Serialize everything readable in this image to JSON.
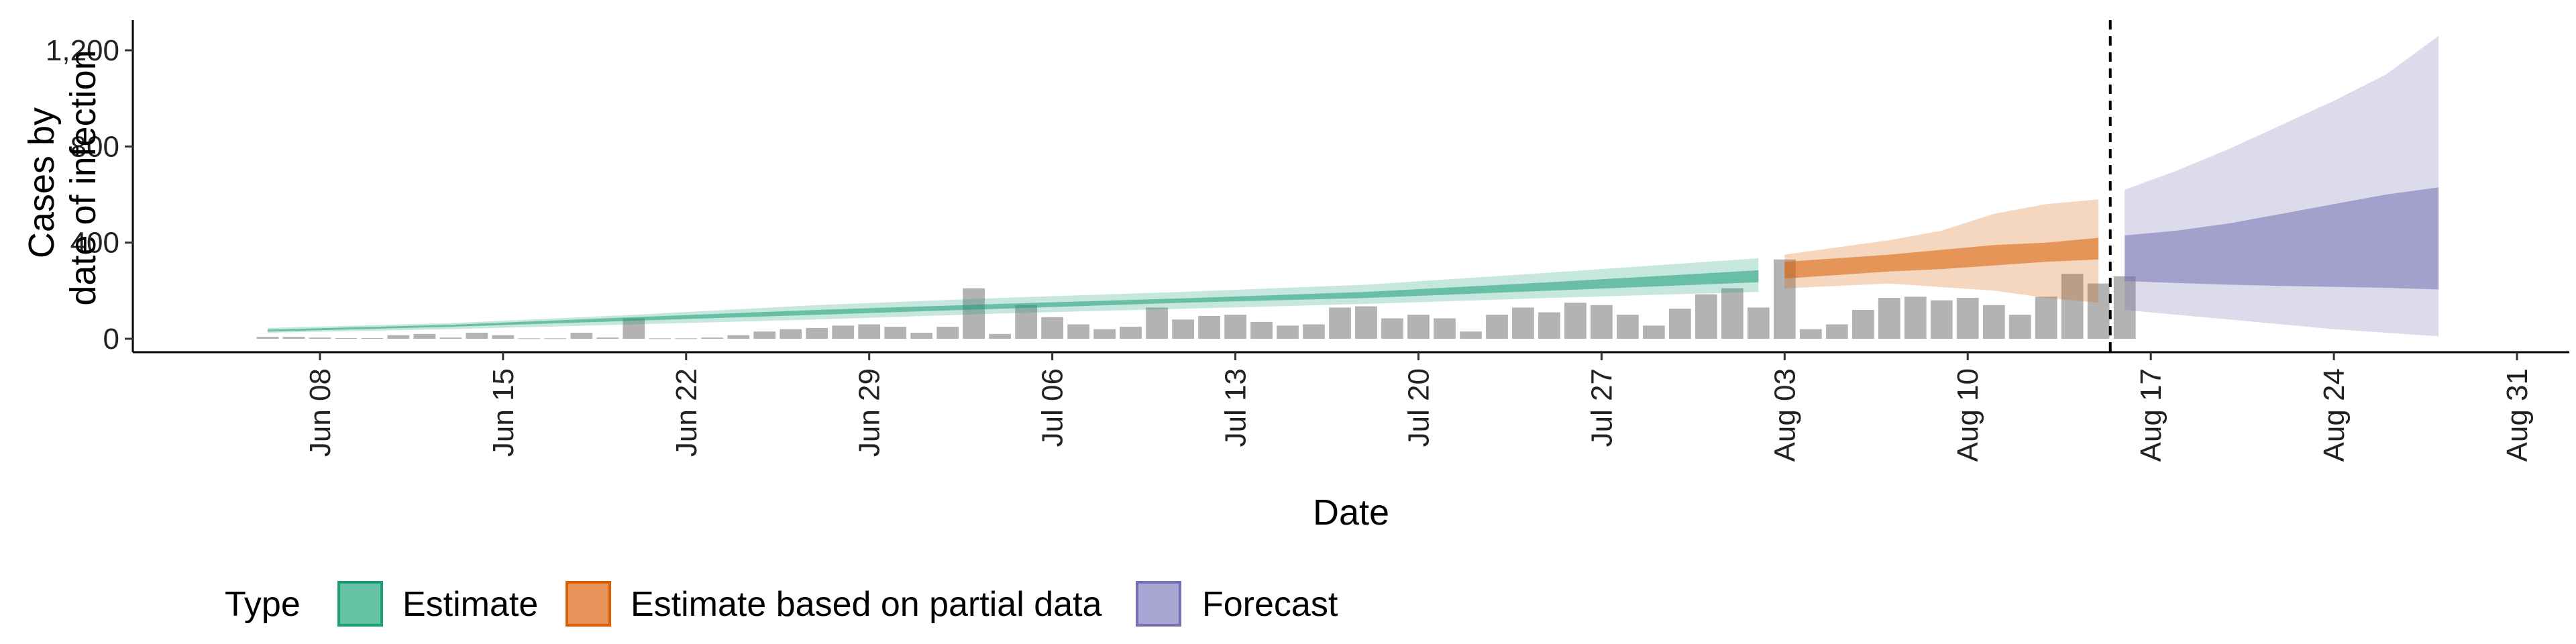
{
  "chart_data": {
    "type": "area",
    "xlabel": "Date",
    "ylabel_lines": [
      "Cases by",
      "date of infection"
    ],
    "ylim": [
      -60,
      1330
    ],
    "y_ticks": [
      0,
      400,
      800,
      1200
    ],
    "y_tick_labels": [
      "0",
      "400",
      "800",
      "1,200"
    ],
    "xlim": [
      "2020-06-01",
      "2020-09-02"
    ],
    "x_ticks": [
      "2020-06-08",
      "2020-06-15",
      "2020-06-22",
      "2020-06-29",
      "2020-07-06",
      "2020-07-13",
      "2020-07-20",
      "2020-07-27",
      "2020-08-03",
      "2020-08-10",
      "2020-08-17",
      "2020-08-24",
      "2020-08-31"
    ],
    "x_tick_labels": [
      "Jun 08",
      "Jun 15",
      "Jun 22",
      "Jun 29",
      "Jul 06",
      "Jul 13",
      "Jul 20",
      "Jul 27",
      "Aug 03",
      "Aug 10",
      "Aug 17",
      "Aug 24",
      "Aug 31"
    ],
    "forecast_date": "2020-08-15",
    "legend": {
      "title": "Type",
      "position": "bottom",
      "items": [
        {
          "label": "Estimate",
          "fill": "#66c2a5",
          "stroke": "#1b9e77"
        },
        {
          "label": "Estimate based on partial data",
          "fill": "#e8925a",
          "stroke": "#d95f02"
        },
        {
          "label": "Forecast",
          "fill": "#a9a5d2",
          "stroke": "#7570b3"
        }
      ]
    },
    "colors": {
      "estimate_outer": "#1b9e77",
      "estimate_inner": "#1b9e77",
      "partial_outer": "#d95f02",
      "partial_inner": "#d95f02",
      "forecast_outer": "#7570b3",
      "forecast_inner": "#7570b3",
      "bars": "#b3b3b3"
    },
    "reported_cases": {
      "start_date": "2020-06-06",
      "values": [
        8,
        8,
        5,
        3,
        3,
        15,
        20,
        5,
        25,
        15,
        2,
        2,
        25,
        5,
        85,
        2,
        2,
        5,
        15,
        30,
        40,
        45,
        55,
        60,
        50,
        25,
        50,
        210,
        20,
        140,
        90,
        60,
        40,
        50,
        130,
        80,
        95,
        100,
        70,
        55,
        60,
        130,
        135,
        85,
        100,
        85,
        30,
        100,
        130,
        110,
        150,
        140,
        100,
        55,
        125,
        185,
        210,
        130,
        330,
        40,
        60,
        120,
        170,
        175,
        160,
        170,
        140,
        100,
        175,
        270,
        230,
        260
      ]
    },
    "bands": [
      {
        "name": "Estimate",
        "dates": [
          "2020-06-06",
          "2020-06-13",
          "2020-06-20",
          "2020-06-27",
          "2020-07-04",
          "2020-07-11",
          "2020-07-18",
          "2020-07-25",
          "2020-08-02"
        ],
        "lower_90": [
          25,
          40,
          60,
          80,
          105,
          125,
          145,
          170,
          195
        ],
        "upper_90": [
          45,
          65,
          100,
          140,
          170,
          195,
          225,
          275,
          335
        ],
        "lower_50": [
          30,
          50,
          75,
          100,
          125,
          150,
          170,
          200,
          235
        ],
        "upper_50": [
          38,
          58,
          90,
          120,
          145,
          168,
          195,
          235,
          285
        ]
      },
      {
        "name": "Estimate based on partial data",
        "dates": [
          "2020-08-03",
          "2020-08-05",
          "2020-08-07",
          "2020-08-09",
          "2020-08-11",
          "2020-08-13",
          "2020-08-15"
        ],
        "lower_90": [
          210,
          220,
          230,
          215,
          200,
          170,
          150
        ],
        "upper_90": [
          350,
          380,
          410,
          450,
          520,
          560,
          580
        ],
        "lower_50": [
          250,
          265,
          280,
          290,
          305,
          320,
          330
        ],
        "upper_50": [
          320,
          335,
          350,
          370,
          390,
          400,
          420
        ]
      },
      {
        "name": "Forecast",
        "dates": [
          "2020-08-16",
          "2020-08-18",
          "2020-08-20",
          "2020-08-22",
          "2020-08-24",
          "2020-08-26",
          "2020-08-28"
        ],
        "lower_90": [
          120,
          100,
          80,
          60,
          40,
          25,
          10
        ],
        "upper_90": [
          620,
          700,
          790,
          890,
          990,
          1100,
          1260
        ],
        "lower_50": [
          240,
          232,
          225,
          220,
          216,
          212,
          205
        ],
        "upper_50": [
          430,
          450,
          480,
          520,
          560,
          600,
          630
        ]
      }
    ]
  }
}
